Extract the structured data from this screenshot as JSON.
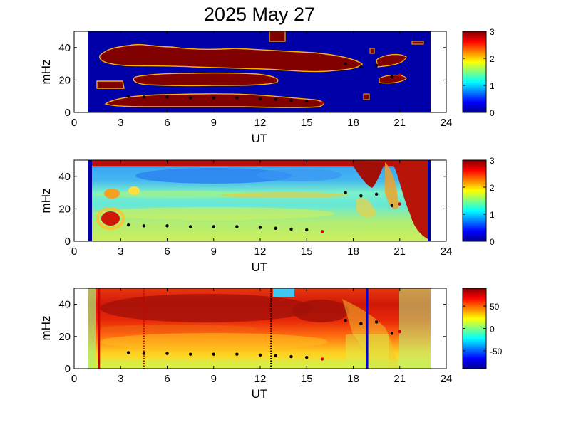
{
  "title": "2025 May 27",
  "chart_data": [
    {
      "type": "heatmap",
      "xlabel": "UT",
      "ylabel": "mHz",
      "xlim": [
        0,
        24
      ],
      "ylim": [
        0,
        50
      ],
      "xticks": [
        0,
        3,
        6,
        9,
        12,
        15,
        18,
        21,
        24
      ],
      "yticks": [
        0,
        20,
        40
      ],
      "colorbar": {
        "min": 0,
        "max": 3,
        "ticks": [
          0,
          1,
          2,
          3
        ]
      },
      "data_range_ut": [
        1.0,
        23.0
      ],
      "bands_mHz": [
        {
          "points": [
            [
              1.5,
              36
            ],
            [
              3,
              38
            ],
            [
              6,
              38
            ],
            [
              9,
              35
            ],
            [
              12,
              35
            ],
            [
              15,
              34
            ],
            [
              18,
              32
            ],
            [
              19,
              30
            ]
          ]
        },
        {
          "points": [
            [
              2.5,
              23
            ],
            [
              6,
              23
            ],
            [
              9,
              23
            ],
            [
              12,
              22
            ],
            [
              14.5,
              21
            ]
          ]
        },
        {
          "points": [
            [
              1.5,
              17
            ],
            [
              2.8,
              17
            ]
          ]
        },
        {
          "points": [
            [
              2,
              6
            ],
            [
              4,
              10
            ],
            [
              7,
              11
            ],
            [
              10,
              10
            ],
            [
              13,
              9
            ],
            [
              15.5,
              6
            ]
          ]
        }
      ],
      "detections": {
        "x": [
          3.5,
          4.5,
          6,
          7.5,
          9,
          10.5,
          12,
          13,
          14,
          15,
          16,
          17.5,
          18.5,
          19.5,
          20.5,
          21
        ],
        "y": [
          10,
          9.5,
          9.5,
          9,
          9,
          9,
          8.5,
          8,
          7.5,
          7,
          6,
          30,
          28,
          29,
          22,
          23
        ]
      }
    },
    {
      "type": "heatmap",
      "xlabel": "UT",
      "ylabel": "mHz",
      "xlim": [
        0,
        24
      ],
      "ylim": [
        0,
        50
      ],
      "xticks": [
        0,
        3,
        6,
        9,
        12,
        15,
        18,
        21,
        24
      ],
      "yticks": [
        0,
        20,
        40
      ],
      "colorbar": {
        "min": 0,
        "max": 3,
        "ticks": [
          0,
          1,
          2,
          3
        ]
      },
      "data_range_ut": [
        1.0,
        23.0
      ],
      "detections": {
        "x": [
          3.5,
          4.5,
          6,
          7.5,
          9,
          10.5,
          12,
          13,
          14,
          15,
          16,
          17.5,
          18.5,
          19.5,
          20.5,
          21
        ],
        "y": [
          10,
          9.5,
          9.5,
          9,
          9,
          9,
          8.5,
          8,
          7.5,
          7,
          6,
          30,
          28,
          29,
          22,
          23
        ]
      }
    },
    {
      "type": "heatmap",
      "xlabel": "UT",
      "ylabel": "mHz",
      "xlim": [
        0,
        24
      ],
      "ylim": [
        0,
        50
      ],
      "xticks": [
        0,
        3,
        6,
        9,
        12,
        15,
        18,
        21,
        24
      ],
      "yticks": [
        0,
        20,
        40
      ],
      "colorbar": {
        "min": -90,
        "max": 90,
        "ticks": [
          -50,
          0,
          50
        ]
      },
      "data_range_ut": [
        1.0,
        23.0
      ],
      "vertical_lines": [
        {
          "x": 1.6,
          "color": "#cc0000",
          "style": "solid"
        },
        {
          "x": 4.5,
          "color": "#cc0000",
          "style": "dotted"
        },
        {
          "x": 12.7,
          "color": "#000000",
          "style": "dotted"
        },
        {
          "x": 18.9,
          "color": "#0000dd",
          "style": "solid"
        }
      ],
      "detections": {
        "x": [
          3.5,
          4.5,
          6,
          7.5,
          9,
          10.5,
          12,
          13,
          14,
          15,
          16,
          17.5,
          18.5,
          19.5,
          20.5,
          21
        ],
        "y": [
          10,
          9.5,
          9.5,
          9,
          9,
          9,
          8.5,
          8,
          7.5,
          7,
          6,
          30,
          28,
          29,
          22,
          23
        ]
      }
    }
  ]
}
